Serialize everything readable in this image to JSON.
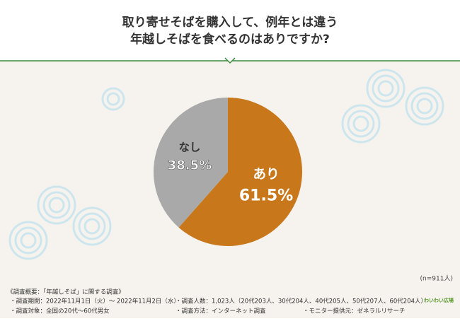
{
  "chart_data": {
    "type": "pie",
    "title": [
      "取り寄せそばを購入して、例年とは違う",
      "年越しそばを食べるのはありですか?"
    ],
    "categories": [
      "あり",
      "なし"
    ],
    "values": [
      61.5,
      38.5
    ],
    "value_labels": [
      "61.5%",
      "38.5%"
    ],
    "colors": [
      "#c8781a",
      "#a9a9a9"
    ],
    "note": "(n=911人)"
  },
  "footer": {
    "heading": "《調査概要：「年越しそば」に関する調査》",
    "items": [
      "・調査期間：2022年11月1日（火）～ 2022年11月2日（水）",
      "・調査人数：1,023人（20代203人、30代204人、40代205人、50代207人、60代204人）",
      "・調査対象：全国の20代～60代男女",
      "・調査方法：インターネット調査",
      "・モニター提供元：ゼネラルリサーチ"
    ],
    "logo": "わいわい広場"
  }
}
